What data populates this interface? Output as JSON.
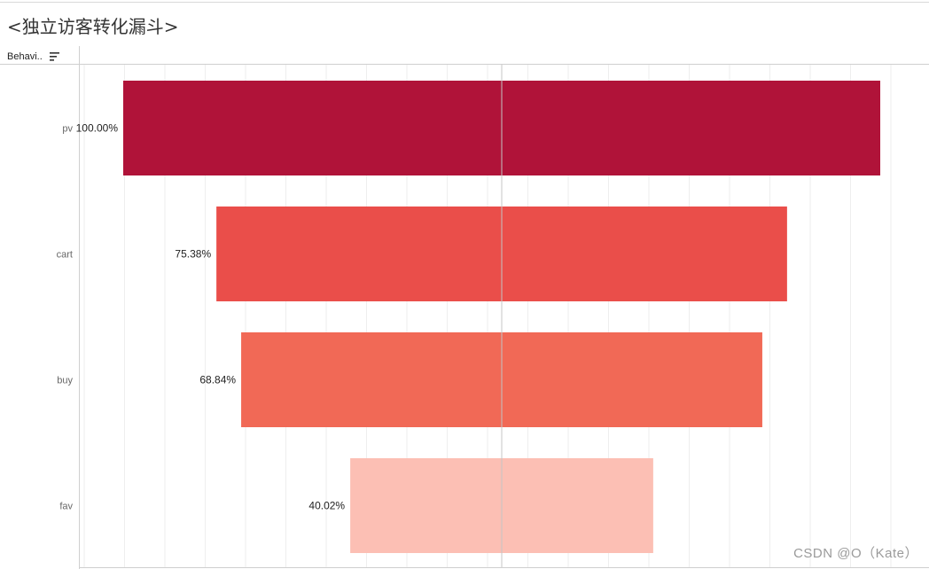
{
  "title": "<独立访客转化漏斗>",
  "header": {
    "field_label": "Behavi.."
  },
  "watermark": "CSDN @O（Kate）",
  "colors": {
    "pv": "#b01339",
    "cart": "#ea4e4a",
    "buy": "#f16956",
    "fav": "#fcbfb4",
    "center_line": "#c4c4c4",
    "grid": "#eeeeee"
  },
  "chart_data": {
    "type": "bar",
    "subtype": "funnel",
    "categories": [
      "pv",
      "cart",
      "buy",
      "fav"
    ],
    "values": [
      100.0,
      75.38,
      68.84,
      40.02
    ],
    "labels": [
      "100.00%",
      "75.38%",
      "68.84%",
      "40.02%"
    ],
    "title": "<独立访客转化漏斗>",
    "xlabel": "",
    "ylabel": "Behavi..",
    "ylim": [
      0,
      100
    ],
    "grid": true,
    "legend": "none"
  }
}
